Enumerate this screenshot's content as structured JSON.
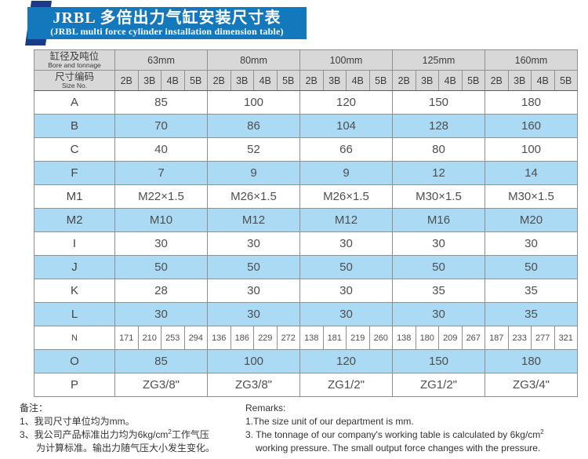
{
  "title": {
    "cn": "JRBL 多倍出力气缸安装尺寸表",
    "en": "(JRBL multi force cylinder installation dimension table)"
  },
  "table": {
    "header": {
      "bore_label_cn": "缸径及吨位",
      "bore_label_en": "Bore and tonnage",
      "size_label_cn": "尺寸编码",
      "size_label_en": "Size No.",
      "bores": [
        "63mm",
        "80mm",
        "100mm",
        "125mm",
        "160mm"
      ],
      "sizes": [
        "2B",
        "3B",
        "4B",
        "5B"
      ]
    },
    "rows": [
      {
        "label": "A",
        "shade": false,
        "values": [
          "85",
          "100",
          "120",
          "150",
          "180"
        ]
      },
      {
        "label": "B",
        "shade": true,
        "values": [
          "70",
          "86",
          "104",
          "128",
          "160"
        ]
      },
      {
        "label": "C",
        "shade": false,
        "values": [
          "40",
          "52",
          "66",
          "80",
          "100"
        ]
      },
      {
        "label": "F",
        "shade": true,
        "values": [
          "7",
          "9",
          "9",
          "12",
          "14"
        ]
      },
      {
        "label": "M1",
        "shade": false,
        "values": [
          "M22×1.5",
          "M26×1.5",
          "M26×1.5",
          "M30×1.5",
          "M30×1.5"
        ]
      },
      {
        "label": "M2",
        "shade": true,
        "values": [
          "M10",
          "M12",
          "M12",
          "M16",
          "M20"
        ]
      },
      {
        "label": "I",
        "shade": false,
        "values": [
          "30",
          "30",
          "30",
          "30",
          "30"
        ]
      },
      {
        "label": "J",
        "shade": true,
        "values": [
          "50",
          "50",
          "50",
          "50",
          "50"
        ]
      },
      {
        "label": "K",
        "shade": false,
        "values": [
          "28",
          "30",
          "30",
          "35",
          "35"
        ]
      },
      {
        "label": "L",
        "shade": true,
        "values": [
          "30",
          "30",
          "30",
          "30",
          "35"
        ]
      },
      {
        "label": "N",
        "shade": false,
        "values": [
          "171",
          "210",
          "253",
          "294",
          "136",
          "186",
          "229",
          "272",
          "138",
          "181",
          "219",
          "260",
          "138",
          "180",
          "209",
          "267",
          "187",
          "233",
          "277",
          "321"
        ]
      },
      {
        "label": "O",
        "shade": true,
        "values": [
          "85",
          "100",
          "120",
          "150",
          "180"
        ]
      },
      {
        "label": "P",
        "shade": false,
        "values": [
          "ZG3/8\"",
          "ZG3/8\"",
          "ZG1/2\"",
          "ZG1/2\"",
          "ZG3/4\""
        ]
      }
    ]
  },
  "notes_cn": {
    "heading": "备注：",
    "line1": "1、我司尺寸单位均为mm。",
    "line3_pre": "3、我公司产品标准出力均为6kg/cm",
    "line3_sup": "2",
    "line3_post": "工作气压",
    "line3b": "为计算标准。输出力随气压大小发生变化。"
  },
  "notes_en": {
    "heading": "Remarks:",
    "line1": "1.The size unit of our department is mm.",
    "line3_pre": "3. The tonnage of our company's working table is calculated by 6kg/cm",
    "line3_sup": "2",
    "line3b": "working pressure. The small output force changes with the pressure."
  }
}
